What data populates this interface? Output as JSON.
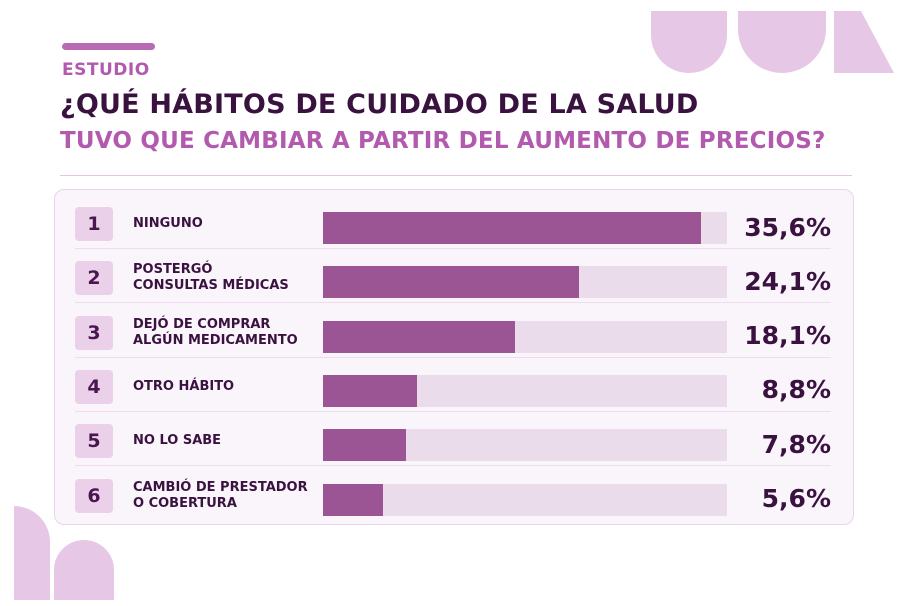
{
  "header": {
    "tag": "ESTUDIO",
    "title_line1": "¿QUÉ HÁBITOS DE CUIDADO DE LA SALUD",
    "title_line2": "TUVO QUE CAMBIAR A PARTIR DEL AUMENTO DE PRECIOS?"
  },
  "colors": {
    "bar_fill": "#9c5594",
    "bar_track": "#ebdcec",
    "accent": "#b25aae",
    "text_dark": "#3a1240",
    "decor": "#e7c7e6"
  },
  "chart_data": {
    "type": "bar",
    "orientation": "horizontal",
    "value_unit": "%",
    "xlim": [
      0,
      38
    ],
    "categories": [
      "NINGUNO",
      "POSTERGÓ\nCONSULTAS MÉDICAS",
      "DEJÓ DE COMPRAR\nALGÚN MEDICAMENTO",
      "OTRO HÁBITO",
      "NO LO SABE",
      "CAMBIÓ DE PRESTADOR\nO COBERTURA"
    ],
    "ranks": [
      "1",
      "2",
      "3",
      "4",
      "5",
      "6"
    ],
    "values": [
      35.6,
      24.1,
      18.1,
      8.8,
      7.8,
      5.6
    ],
    "value_labels": [
      "35,6%",
      "24,1%",
      "18,1%",
      "8,8%",
      "7,8%",
      "5,6%"
    ]
  }
}
